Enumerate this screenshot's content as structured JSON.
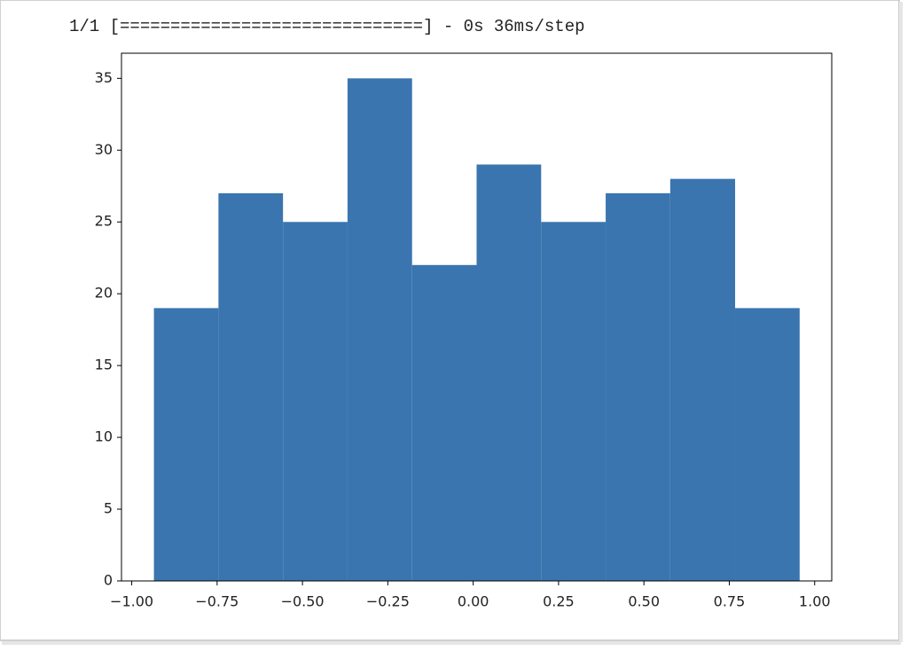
{
  "output_text": "1/1 [==============================] - 0s 36ms/step",
  "chart_data": {
    "type": "histogram",
    "color": "#3a75af",
    "bins": [
      -0.935,
      -0.746,
      -0.557,
      -0.368,
      -0.179,
      0.01,
      0.199,
      0.388,
      0.577,
      0.767,
      0.956
    ],
    "values": [
      19,
      27,
      25,
      35,
      22,
      29,
      25,
      27,
      28,
      19
    ],
    "xlim": [
      -1.03,
      1.05
    ],
    "ylim": [
      0,
      36.75
    ],
    "xticks": [
      {
        "value": -1,
        "label": "−1.00"
      },
      {
        "value": -0.75,
        "label": "−0.75"
      },
      {
        "value": -0.5,
        "label": "−0.50"
      },
      {
        "value": -0.25,
        "label": "−0.25"
      },
      {
        "value": 0,
        "label": "0.00"
      },
      {
        "value": 0.25,
        "label": "0.25"
      },
      {
        "value": 0.5,
        "label": "0.50"
      },
      {
        "value": 0.75,
        "label": "0.75"
      },
      {
        "value": 1,
        "label": "1.00"
      }
    ],
    "yticks": [
      0,
      5,
      10,
      15,
      20,
      25,
      30,
      35
    ]
  }
}
